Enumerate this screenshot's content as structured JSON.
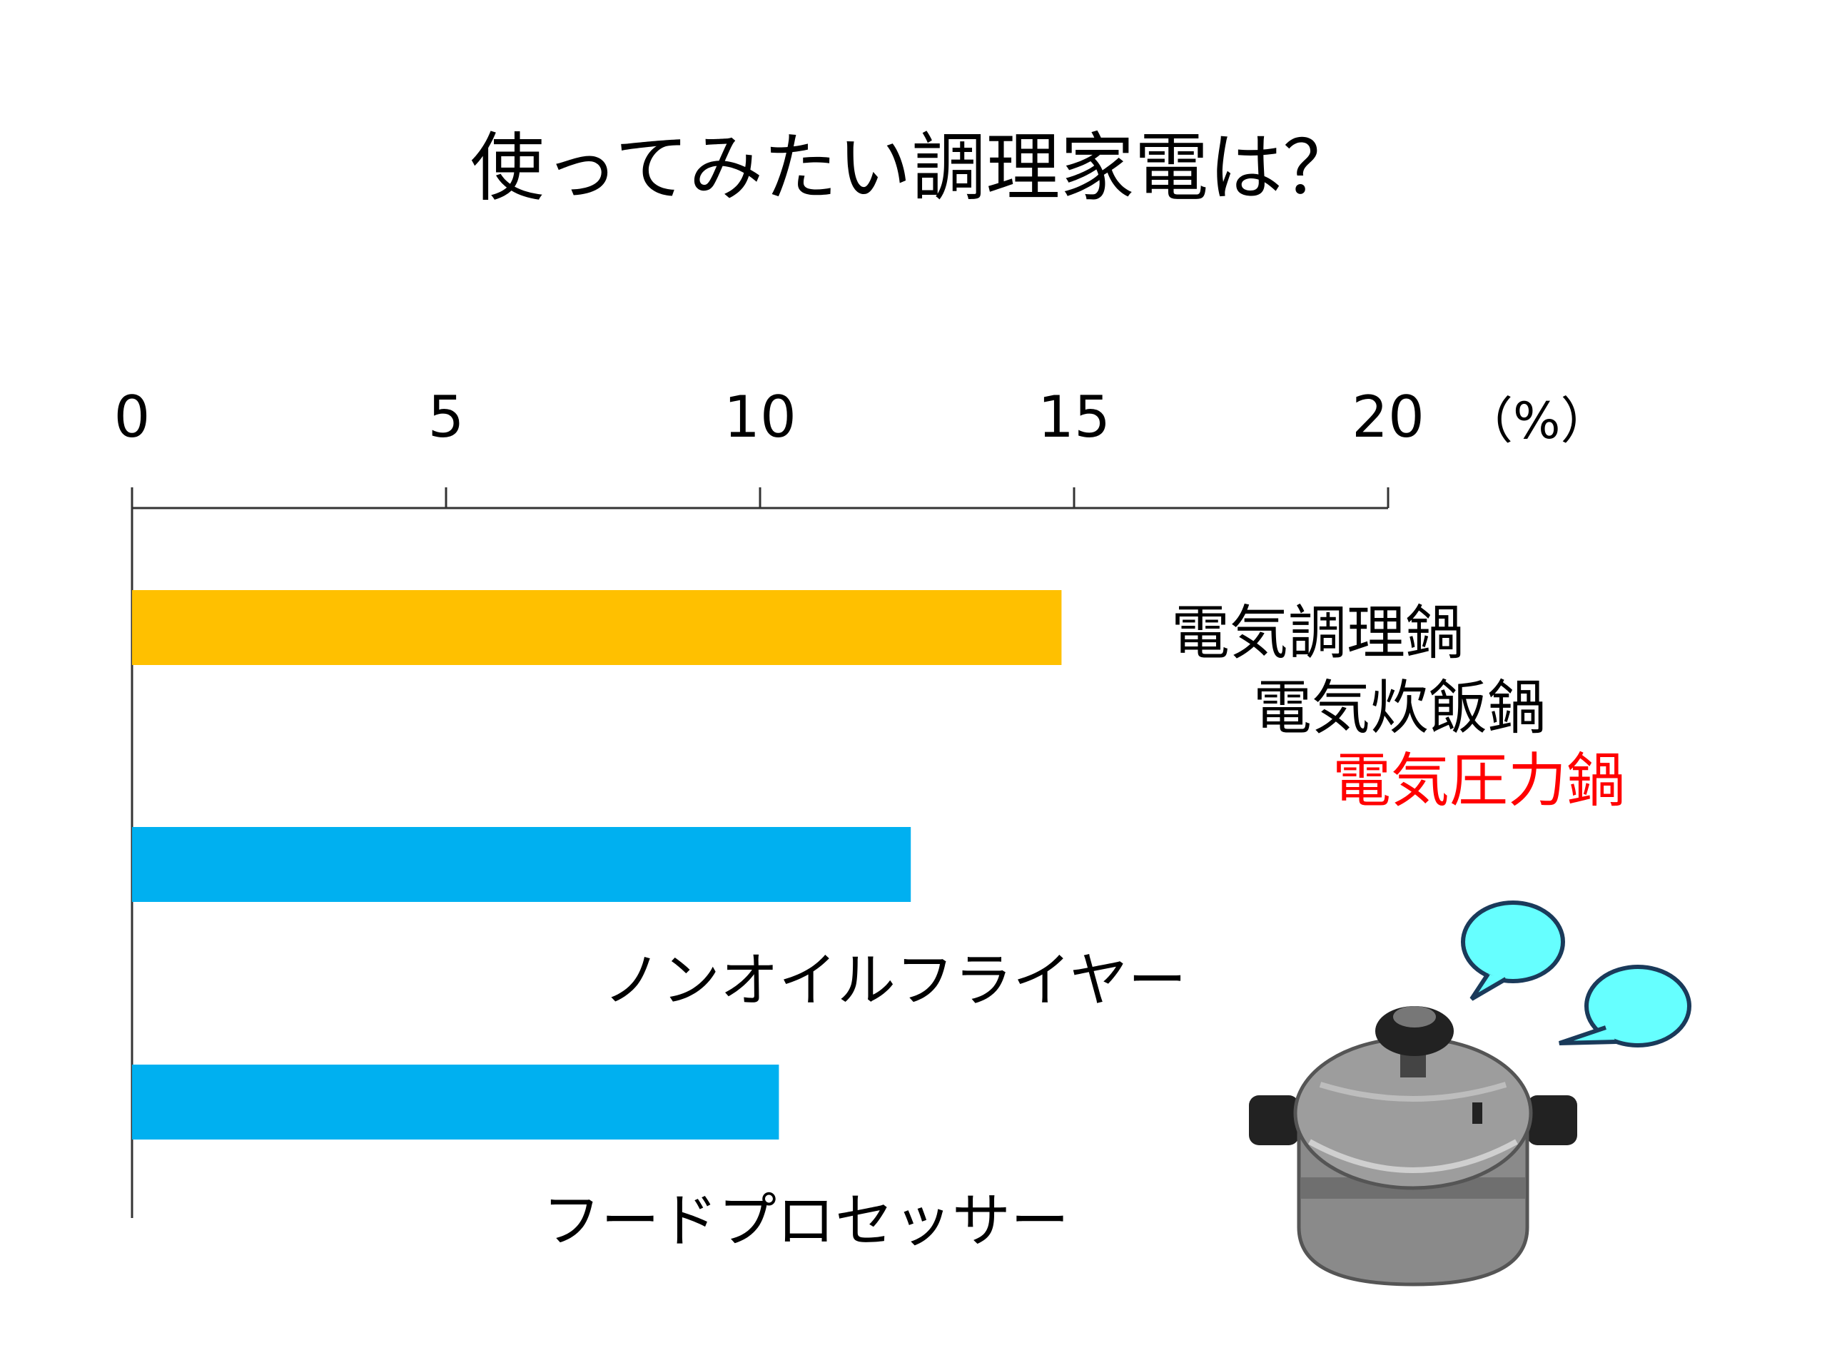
{
  "chart_data": {
    "type": "bar",
    "orientation": "horizontal",
    "title": "使ってみたい調理家電は？",
    "unit_label": "（%）",
    "xlim": [
      0,
      20
    ],
    "ticks": [
      "0",
      "5",
      "10",
      "15",
      "20"
    ],
    "categories": [
      [
        "電気調理鍋",
        "電気炊飯鍋",
        "電気圧力鍋"
      ],
      [
        "ノンオイルフライヤー"
      ],
      [
        "フードプロセッサー"
      ]
    ],
    "values": [
      14.8,
      12.4,
      10.3
    ],
    "colors": [
      "#FFC000",
      "#00B0F0",
      "#00B0F0"
    ],
    "highlight_color": "#FF0000"
  }
}
